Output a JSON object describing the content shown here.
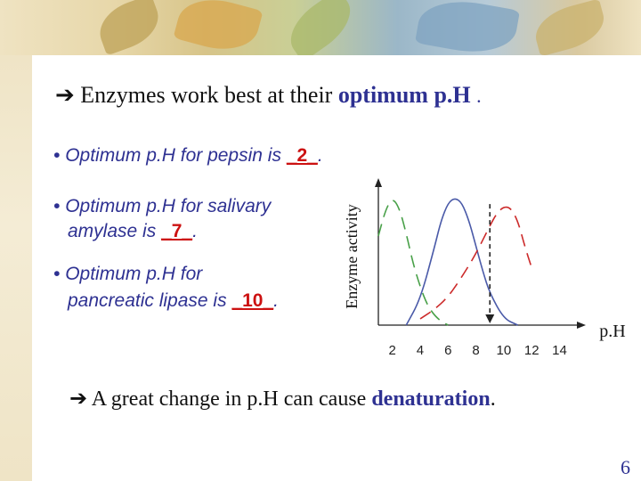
{
  "slide": {
    "title_prefix": "Enzymes work best at their",
    "title_highlight": "optimum p.H",
    "title_suffix": ".",
    "bullets": [
      {
        "bullet": "•",
        "line1": "Optimum p.H for pepsin is",
        "answer": "_2_",
        "end": "."
      },
      {
        "bullet": "•",
        "line1": "Optimum p.H for salivary",
        "line2_prefix": "amylase is",
        "answer": "_7_",
        "end": "."
      },
      {
        "bullet": "•",
        "line1": "Optimum p.H for",
        "line2_prefix": "pancreatic lipase is",
        "answer": "_10_",
        "end": "."
      }
    ],
    "bottom_prefix": "A great change in p.H can cause",
    "bottom_highlight": "denaturation",
    "bottom_suffix": ".",
    "page_number": "6",
    "arrow_icon": "right-arrow-icon"
  },
  "chart_data": {
    "type": "line",
    "xlabel": "p.H",
    "ylabel": "Enzyme activity",
    "x_ticks": [
      "2",
      "4",
      "6",
      "8",
      "10",
      "12",
      "14"
    ],
    "xlim": [
      1,
      15.5
    ],
    "ylim": [
      0,
      1
    ],
    "series": [
      {
        "color": "#48a048",
        "style": "dashed",
        "x": [
          1.0,
          1.5,
          2.0,
          2.5,
          3.0,
          3.5,
          4.0,
          4.5,
          5.0,
          5.5,
          6.0
        ],
        "y": [
          0.7,
          0.9,
          1.0,
          0.92,
          0.72,
          0.48,
          0.3,
          0.16,
          0.08,
          0.03,
          0.0
        ]
      },
      {
        "color": "#4a5aa8",
        "style": "solid",
        "x": [
          3.0,
          4.0,
          5.0,
          5.5,
          6.0,
          6.5,
          7.0,
          7.5,
          8.0,
          8.5,
          9.0,
          10.0,
          11.0
        ],
        "y": [
          0.0,
          0.2,
          0.6,
          0.82,
          0.96,
          1.0,
          0.96,
          0.82,
          0.62,
          0.42,
          0.25,
          0.05,
          0.0
        ]
      },
      {
        "color": "#cc2a2a",
        "style": "dashed",
        "x": [
          4.0,
          5.0,
          6.0,
          7.0,
          8.0,
          9.0,
          9.5,
          10.0,
          10.5,
          11.0,
          11.5,
          12.0
        ],
        "y": [
          0.05,
          0.12,
          0.22,
          0.38,
          0.56,
          0.78,
          0.88,
          0.93,
          0.92,
          0.82,
          0.62,
          0.45
        ]
      }
    ],
    "annotation": {
      "type": "dashed-arrow",
      "x": 9.0,
      "color": "#222222"
    }
  },
  "colors": {
    "accent": "#2e3192",
    "answer": "#cc1111"
  }
}
